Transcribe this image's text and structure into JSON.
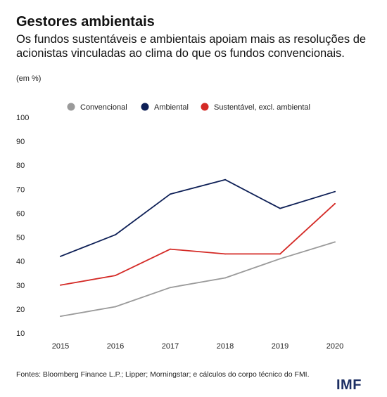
{
  "header": {
    "title": "Gestores ambientais",
    "subtitle": "Os fundos sustentáveis e ambientais apoiam mais as resoluções de acionistas vinculadas ao clima do que os fundos convencionais.",
    "units": "(em %)"
  },
  "footer": {
    "source": "Fontes: Bloomberg Finance L.P.; Lipper; Morningstar; e cálculos do corpo técnico do FMI.",
    "logo": "IMF"
  },
  "chart_data": {
    "type": "line",
    "x": [
      "2015",
      "2016",
      "2017",
      "2018",
      "2019",
      "2020"
    ],
    "ylim": [
      10,
      100
    ],
    "yticks": [
      10,
      20,
      30,
      40,
      50,
      60,
      70,
      80,
      90,
      100
    ],
    "grid": false,
    "legend_position": "top",
    "series": [
      {
        "name": "Convencional",
        "color": "#9a9a9a",
        "values": [
          17,
          21,
          29,
          33,
          41,
          48
        ]
      },
      {
        "name": "Ambiental",
        "color": "#0d1f56",
        "values": [
          42,
          51,
          68,
          74,
          62,
          69
        ]
      },
      {
        "name": "Sustentável, excl. ambiental",
        "color": "#d42a26",
        "values": [
          30,
          34,
          45,
          43,
          43,
          64
        ]
      }
    ]
  }
}
